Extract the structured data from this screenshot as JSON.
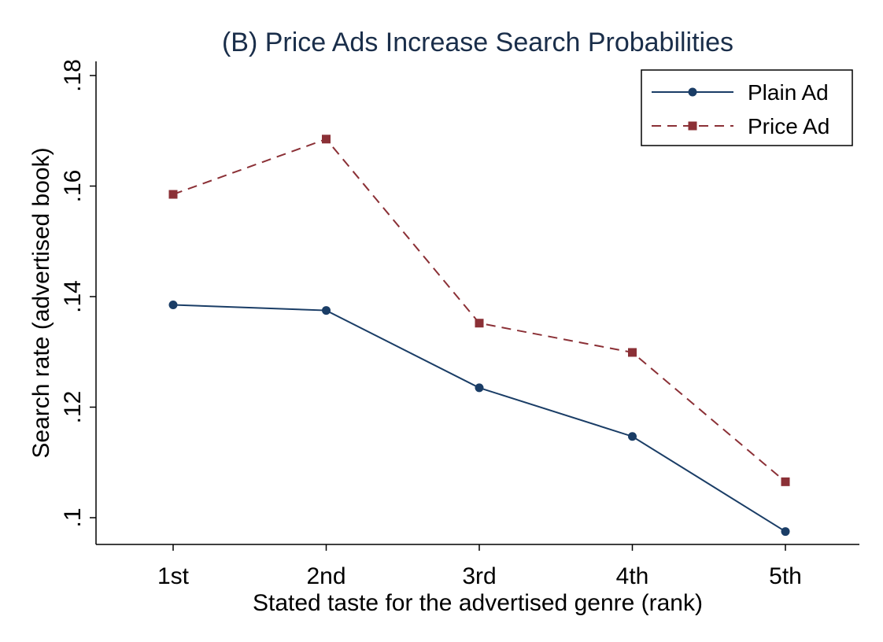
{
  "chart_data": {
    "type": "line",
    "title": "(B) Price Ads Increase Search Probabilities",
    "xlabel": "Stated taste for the advertised genre (rank)",
    "ylabel": "Search rate (advertised book)",
    "categories": [
      "1st",
      "2nd",
      "3rd",
      "4th",
      "5th"
    ],
    "yticks": [
      ".1",
      ".12",
      ".14",
      ".16",
      ".18"
    ],
    "ylim": [
      0.095,
      0.183
    ],
    "grid": false,
    "legend_position": "top-right",
    "series": [
      {
        "name": "Plain Ad",
        "values": [
          0.1385,
          0.1375,
          0.1235,
          0.1147,
          0.0975
        ],
        "color": "#1a3d66",
        "marker": "circle",
        "line": "solid"
      },
      {
        "name": "Price Ad",
        "values": [
          0.1585,
          0.1685,
          0.1352,
          0.1299,
          0.1065
        ],
        "color": "#8b3036",
        "marker": "square",
        "line": "dashed"
      }
    ],
    "colors": {
      "title": "#1a2e4a",
      "axis": "#000000"
    }
  }
}
